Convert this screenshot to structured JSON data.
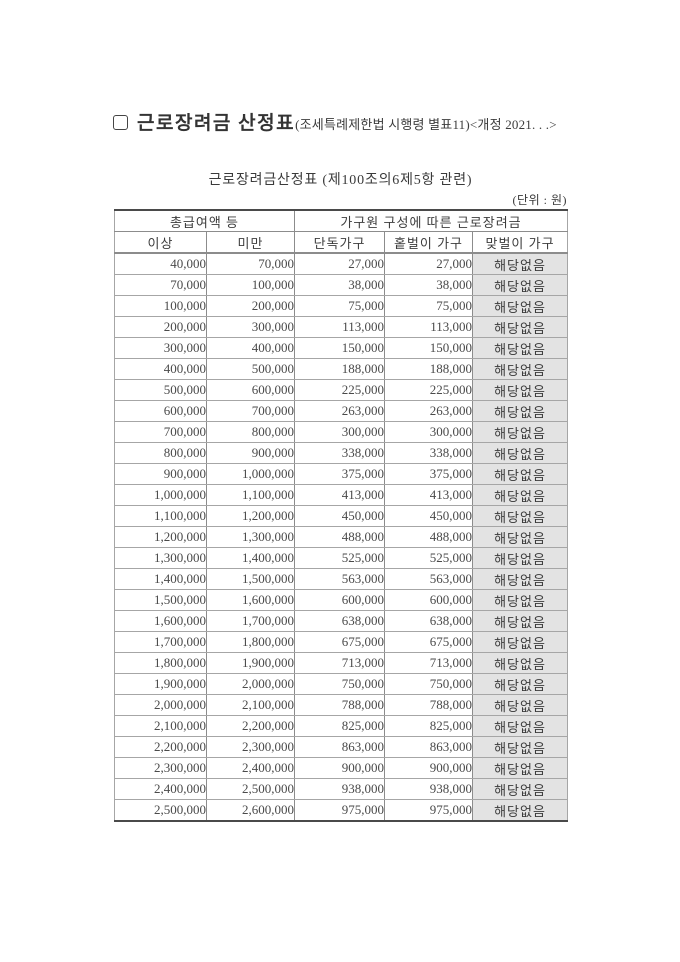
{
  "page": {
    "title": "근로장려금 산정표",
    "title_suffix": "(조세특례제한법 시행령 별표11)<개정 2021.  .  .>",
    "subtitle": "근로장려금산정표 (제100조의6제5항 관련)",
    "unit_label": "(단위 : 원)"
  },
  "table": {
    "group_headers": [
      {
        "label": "총급여액 등",
        "colspan": 2
      },
      {
        "label": "가구원 구성에 따른 근로장려금",
        "colspan": 3
      }
    ],
    "column_headers": [
      "이상",
      "미만",
      "단독가구",
      "홑벌이 가구",
      "맞벌이 가구"
    ],
    "rows": [
      [
        "40,000",
        "70,000",
        "27,000",
        "27,000",
        "해당없음"
      ],
      [
        "70,000",
        "100,000",
        "38,000",
        "38,000",
        "해당없음"
      ],
      [
        "100,000",
        "200,000",
        "75,000",
        "75,000",
        "해당없음"
      ],
      [
        "200,000",
        "300,000",
        "113,000",
        "113,000",
        "해당없음"
      ],
      [
        "300,000",
        "400,000",
        "150,000",
        "150,000",
        "해당없음"
      ],
      [
        "400,000",
        "500,000",
        "188,000",
        "188,000",
        "해당없음"
      ],
      [
        "500,000",
        "600,000",
        "225,000",
        "225,000",
        "해당없음"
      ],
      [
        "600,000",
        "700,000",
        "263,000",
        "263,000",
        "해당없음"
      ],
      [
        "700,000",
        "800,000",
        "300,000",
        "300,000",
        "해당없음"
      ],
      [
        "800,000",
        "900,000",
        "338,000",
        "338,000",
        "해당없음"
      ],
      [
        "900,000",
        "1,000,000",
        "375,000",
        "375,000",
        "해당없음"
      ],
      [
        "1,000,000",
        "1,100,000",
        "413,000",
        "413,000",
        "해당없음"
      ],
      [
        "1,100,000",
        "1,200,000",
        "450,000",
        "450,000",
        "해당없음"
      ],
      [
        "1,200,000",
        "1,300,000",
        "488,000",
        "488,000",
        "해당없음"
      ],
      [
        "1,300,000",
        "1,400,000",
        "525,000",
        "525,000",
        "해당없음"
      ],
      [
        "1,400,000",
        "1,500,000",
        "563,000",
        "563,000",
        "해당없음"
      ],
      [
        "1,500,000",
        "1,600,000",
        "600,000",
        "600,000",
        "해당없음"
      ],
      [
        "1,600,000",
        "1,700,000",
        "638,000",
        "638,000",
        "해당없음"
      ],
      [
        "1,700,000",
        "1,800,000",
        "675,000",
        "675,000",
        "해당없음"
      ],
      [
        "1,800,000",
        "1,900,000",
        "713,000",
        "713,000",
        "해당없음"
      ],
      [
        "1,900,000",
        "2,000,000",
        "750,000",
        "750,000",
        "해당없음"
      ],
      [
        "2,000,000",
        "2,100,000",
        "788,000",
        "788,000",
        "해당없음"
      ],
      [
        "2,100,000",
        "2,200,000",
        "825,000",
        "825,000",
        "해당없음"
      ],
      [
        "2,200,000",
        "2,300,000",
        "863,000",
        "863,000",
        "해당없음"
      ],
      [
        "2,300,000",
        "2,400,000",
        "900,000",
        "900,000",
        "해당없음"
      ],
      [
        "2,400,000",
        "2,500,000",
        "938,000",
        "938,000",
        "해당없음"
      ],
      [
        "2,500,000",
        "2,600,000",
        "975,000",
        "975,000",
        "해당없음"
      ]
    ],
    "cell_names": [
      "cell-income-min",
      "cell-income-max",
      "cell-single-household",
      "cell-single-earner-household",
      "cell-dual-earner-household"
    ]
  },
  "colors": {
    "na_cell_bg": "#e3e3e3",
    "border_heavy": "#4a4a4a",
    "border_mid": "#8c8c8c",
    "border_light": "#a6a6a6",
    "text": "#3c3c3c"
  }
}
